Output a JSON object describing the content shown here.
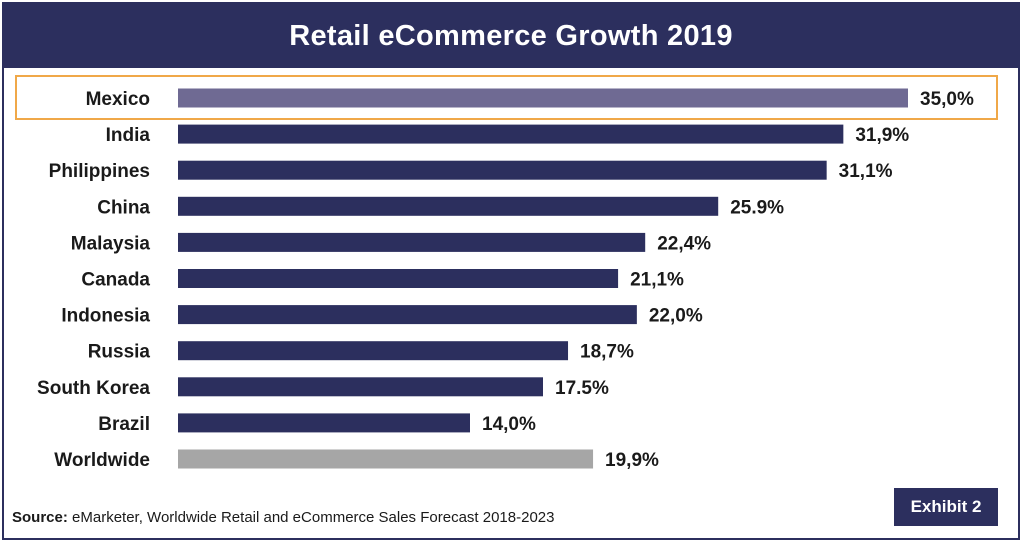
{
  "title": "Retail eCommerce Growth 2019",
  "source_label": "Source:",
  "source_text": " eMarketer, Worldwide Retail and eCommerce Sales Forecast 2018-2023",
  "exhibit_label": "Exhibit 2",
  "colors": {
    "frame": "#2c2f5e",
    "bar": "#2c2f5e",
    "bar_highlight": "#6f6a93",
    "bar_worldwide": "#a6a6a6",
    "highlight_border": "#f0a848"
  },
  "chart_data": {
    "type": "bar",
    "orientation": "horizontal",
    "title": "Retail eCommerce Growth 2019",
    "xlabel": "",
    "ylabel": "",
    "grid": false,
    "legend": "none",
    "xlim": [
      0,
      35
    ],
    "highlight": "Mexico",
    "categories": [
      "Mexico",
      "India",
      "Philippines",
      "China",
      "Malaysia",
      "Canada",
      "Indonesia",
      "Russia",
      "South Korea",
      "Brazil",
      "Worldwide"
    ],
    "values": [
      35.0,
      31.9,
      31.1,
      25.9,
      22.4,
      21.1,
      22.0,
      18.7,
      17.5,
      14.0,
      19.9
    ],
    "value_labels": [
      "35,0%",
      "31,9%",
      "31,1%",
      "25.9%",
      "22,4%",
      "21,1%",
      "22,0%",
      "18,7%",
      "17.5%",
      "14,0%",
      "19,9%"
    ]
  }
}
